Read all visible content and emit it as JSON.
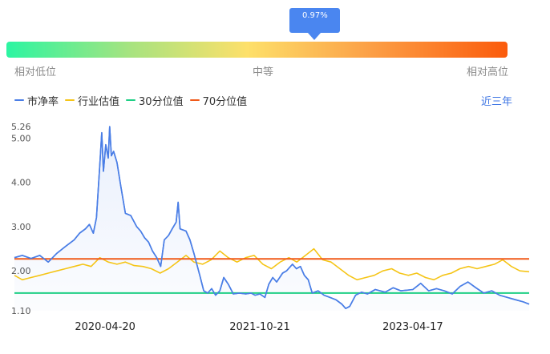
{
  "gauge": {
    "tooltip_value": "0.97%",
    "pointer_percent": 0.97,
    "labels": {
      "low": "相对低位",
      "mid": "中等",
      "high": "相对高位"
    }
  },
  "legend": {
    "items": [
      {
        "label": "市净率",
        "color": "#4a7ee6"
      },
      {
        "label": "行业估值",
        "color": "#f5c518"
      },
      {
        "label": "30分位值",
        "color": "#1fcf85"
      },
      {
        "label": "70分位值",
        "color": "#f05a1a"
      }
    ]
  },
  "range_link": "近三年",
  "chart_data": {
    "type": "line",
    "x_range": [
      "2019-06-03",
      "2024-06-03"
    ],
    "x_ticks": [
      "2020-04-20",
      "2021-10-21",
      "2023-04-17"
    ],
    "y_ticks": [
      "5.26",
      "5.00",
      "4.00",
      "3.00",
      "2.00",
      "1.10"
    ],
    "ylim": [
      1.1,
      5.26
    ],
    "series": [
      {
        "name": "市净率",
        "color": "#4a7ee6",
        "fill": true,
        "points": [
          [
            "2019-06-03",
            2.3
          ],
          [
            "2019-07-01",
            2.35
          ],
          [
            "2019-08-01",
            2.28
          ],
          [
            "2019-09-01",
            2.35
          ],
          [
            "2019-10-01",
            2.2
          ],
          [
            "2019-11-01",
            2.4
          ],
          [
            "2019-12-01",
            2.55
          ],
          [
            "2020-01-01",
            2.7
          ],
          [
            "2020-01-20",
            2.85
          ],
          [
            "2020-02-10",
            2.95
          ],
          [
            "2020-02-24",
            3.05
          ],
          [
            "2020-03-09",
            2.85
          ],
          [
            "2020-03-20",
            3.2
          ],
          [
            "2020-04-01",
            4.4
          ],
          [
            "2020-04-08",
            5.12
          ],
          [
            "2020-04-14",
            4.25
          ],
          [
            "2020-04-22",
            4.85
          ],
          [
            "2020-05-01",
            4.55
          ],
          [
            "2020-05-06",
            5.26
          ],
          [
            "2020-05-12",
            4.6
          ],
          [
            "2020-05-20",
            4.7
          ],
          [
            "2020-06-01",
            4.45
          ],
          [
            "2020-06-15",
            3.9
          ],
          [
            "2020-07-01",
            3.3
          ],
          [
            "2020-07-20",
            3.25
          ],
          [
            "2020-08-10",
            3.0
          ],
          [
            "2020-08-24",
            2.9
          ],
          [
            "2020-09-07",
            2.75
          ],
          [
            "2020-09-21",
            2.65
          ],
          [
            "2020-10-05",
            2.45
          ],
          [
            "2020-10-20",
            2.3
          ],
          [
            "2020-11-03",
            2.1
          ],
          [
            "2020-11-16",
            2.7
          ],
          [
            "2020-12-01",
            2.8
          ],
          [
            "2020-12-14",
            2.95
          ],
          [
            "2020-12-28",
            3.1
          ],
          [
            "2021-01-04",
            3.55
          ],
          [
            "2021-01-11",
            2.95
          ],
          [
            "2021-02-01",
            2.9
          ],
          [
            "2021-02-15",
            2.7
          ],
          [
            "2021-03-01",
            2.4
          ],
          [
            "2021-03-22",
            1.9
          ],
          [
            "2021-04-05",
            1.55
          ],
          [
            "2021-04-19",
            1.5
          ],
          [
            "2021-05-03",
            1.6
          ],
          [
            "2021-05-17",
            1.45
          ],
          [
            "2021-06-01",
            1.55
          ],
          [
            "2021-06-15",
            1.85
          ],
          [
            "2021-07-01",
            1.7
          ],
          [
            "2021-07-19",
            1.48
          ],
          [
            "2021-08-09",
            1.5
          ],
          [
            "2021-09-01",
            1.48
          ],
          [
            "2021-09-20",
            1.5
          ],
          [
            "2021-10-04",
            1.45
          ],
          [
            "2021-10-21",
            1.48
          ],
          [
            "2021-11-08",
            1.4
          ],
          [
            "2021-11-22",
            1.7
          ],
          [
            "2021-12-06",
            1.85
          ],
          [
            "2021-12-20",
            1.75
          ],
          [
            "2022-01-10",
            1.95
          ],
          [
            "2022-01-24",
            2.0
          ],
          [
            "2022-02-14",
            2.15
          ],
          [
            "2022-02-28",
            2.05
          ],
          [
            "2022-03-14",
            2.1
          ],
          [
            "2022-03-28",
            1.9
          ],
          [
            "2022-04-11",
            1.8
          ],
          [
            "2022-04-25",
            1.5
          ],
          [
            "2022-05-16",
            1.55
          ],
          [
            "2022-06-06",
            1.45
          ],
          [
            "2022-06-27",
            1.4
          ],
          [
            "2022-07-18",
            1.35
          ],
          [
            "2022-08-08",
            1.25
          ],
          [
            "2022-08-22",
            1.15
          ],
          [
            "2022-09-05",
            1.2
          ],
          [
            "2022-09-26",
            1.45
          ],
          [
            "2022-10-17",
            1.52
          ],
          [
            "2022-11-07",
            1.48
          ],
          [
            "2022-12-05",
            1.58
          ],
          [
            "2023-01-09",
            1.52
          ],
          [
            "2023-02-06",
            1.62
          ],
          [
            "2023-03-06",
            1.55
          ],
          [
            "2023-04-17",
            1.58
          ],
          [
            "2023-05-15",
            1.72
          ],
          [
            "2023-06-12",
            1.55
          ],
          [
            "2023-07-10",
            1.6
          ],
          [
            "2023-08-07",
            1.55
          ],
          [
            "2023-09-04",
            1.48
          ],
          [
            "2023-10-02",
            1.65
          ],
          [
            "2023-10-30",
            1.75
          ],
          [
            "2023-11-27",
            1.62
          ],
          [
            "2023-12-25",
            1.5
          ],
          [
            "2024-01-22",
            1.55
          ],
          [
            "2024-02-19",
            1.45
          ],
          [
            "2024-03-18",
            1.4
          ],
          [
            "2024-04-15",
            1.35
          ],
          [
            "2024-05-13",
            1.3
          ],
          [
            "2024-06-03",
            1.25
          ]
        ]
      },
      {
        "name": "行业估值",
        "color": "#f5c518",
        "fill": false,
        "points": [
          [
            "2019-06-03",
            1.9
          ],
          [
            "2019-07-01",
            1.8
          ],
          [
            "2019-08-01",
            1.85
          ],
          [
            "2019-09-01",
            1.9
          ],
          [
            "2019-10-01",
            1.95
          ],
          [
            "2019-11-01",
            2.0
          ],
          [
            "2019-12-01",
            2.05
          ],
          [
            "2020-01-01",
            2.1
          ],
          [
            "2020-02-01",
            2.15
          ],
          [
            "2020-03-01",
            2.1
          ],
          [
            "2020-04-01",
            2.3
          ],
          [
            "2020-05-01",
            2.2
          ],
          [
            "2020-06-01",
            2.15
          ],
          [
            "2020-07-01",
            2.2
          ],
          [
            "2020-08-01",
            2.12
          ],
          [
            "2020-09-01",
            2.1
          ],
          [
            "2020-10-01",
            2.05
          ],
          [
            "2020-11-01",
            1.95
          ],
          [
            "2020-12-01",
            2.05
          ],
          [
            "2021-01-01",
            2.2
          ],
          [
            "2021-02-01",
            2.35
          ],
          [
            "2021-03-01",
            2.2
          ],
          [
            "2021-04-01",
            2.15
          ],
          [
            "2021-05-01",
            2.25
          ],
          [
            "2021-06-01",
            2.45
          ],
          [
            "2021-07-01",
            2.3
          ],
          [
            "2021-08-01",
            2.2
          ],
          [
            "2021-09-01",
            2.3
          ],
          [
            "2021-10-01",
            2.35
          ],
          [
            "2021-11-01",
            2.15
          ],
          [
            "2021-12-01",
            2.05
          ],
          [
            "2022-01-01",
            2.2
          ],
          [
            "2022-02-01",
            2.3
          ],
          [
            "2022-03-01",
            2.2
          ],
          [
            "2022-04-01",
            2.35
          ],
          [
            "2022-05-01",
            2.5
          ],
          [
            "2022-06-01",
            2.25
          ],
          [
            "2022-07-01",
            2.2
          ],
          [
            "2022-08-01",
            2.05
          ],
          [
            "2022-09-01",
            1.9
          ],
          [
            "2022-10-01",
            1.8
          ],
          [
            "2022-11-01",
            1.85
          ],
          [
            "2022-12-01",
            1.9
          ],
          [
            "2023-01-01",
            2.0
          ],
          [
            "2023-02-01",
            2.05
          ],
          [
            "2023-03-01",
            1.95
          ],
          [
            "2023-04-01",
            1.9
          ],
          [
            "2023-05-01",
            1.95
          ],
          [
            "2023-06-01",
            1.85
          ],
          [
            "2023-07-01",
            1.8
          ],
          [
            "2023-08-01",
            1.9
          ],
          [
            "2023-09-01",
            1.95
          ],
          [
            "2023-10-01",
            2.05
          ],
          [
            "2023-11-01",
            2.1
          ],
          [
            "2023-12-01",
            2.05
          ],
          [
            "2024-01-01",
            2.1
          ],
          [
            "2024-02-01",
            2.15
          ],
          [
            "2024-03-01",
            2.25
          ],
          [
            "2024-04-01",
            2.1
          ],
          [
            "2024-05-01",
            2.0
          ],
          [
            "2024-06-03",
            1.98
          ]
        ]
      },
      {
        "name": "30分位值",
        "color": "#1fcf85",
        "fill": false,
        "points": [
          [
            "2019-06-03",
            1.5
          ],
          [
            "2024-06-03",
            1.5
          ]
        ]
      },
      {
        "name": "70分位值",
        "color": "#f05a1a",
        "fill": false,
        "points": [
          [
            "2019-06-03",
            2.27
          ],
          [
            "2024-06-03",
            2.27
          ]
        ]
      }
    ]
  }
}
